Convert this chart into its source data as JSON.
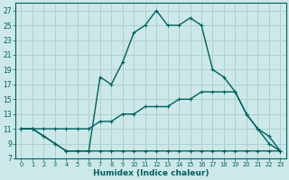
{
  "xlabel": "Humidex (Indice chaleur)",
  "background_color": "#cce8e8",
  "grid_color": "#b0d0d0",
  "line_color": "#006060",
  "xlim": [
    -0.5,
    23.5
  ],
  "ylim": [
    7,
    28
  ],
  "xticks": [
    0,
    1,
    2,
    3,
    4,
    5,
    6,
    7,
    8,
    9,
    10,
    11,
    12,
    13,
    14,
    15,
    16,
    17,
    18,
    19,
    20,
    21,
    22,
    23
  ],
  "yticks": [
    7,
    9,
    11,
    13,
    15,
    17,
    19,
    21,
    23,
    25,
    27
  ],
  "curve1_x": [
    0,
    1,
    2,
    3,
    4,
    5,
    6,
    7,
    8,
    9,
    10,
    11,
    12,
    13,
    14,
    15,
    16,
    17,
    18,
    19,
    20,
    21,
    22,
    23
  ],
  "curve1_y": [
    11,
    11,
    10,
    9,
    8,
    8,
    8,
    8,
    8,
    8,
    8,
    8,
    8,
    8,
    8,
    8,
    8,
    8,
    8,
    8,
    8,
    8,
    8,
    8
  ],
  "curve2_x": [
    0,
    1,
    2,
    3,
    4,
    5,
    6,
    7,
    8,
    9,
    10,
    11,
    12,
    13,
    14,
    15,
    16,
    17,
    18,
    19,
    20,
    21,
    22,
    23
  ],
  "curve2_y": [
    11,
    11,
    11,
    11,
    11,
    11,
    11,
    12,
    12,
    13,
    13,
    14,
    14,
    14,
    15,
    15,
    16,
    16,
    16,
    16,
    13,
    11,
    10,
    8
  ],
  "curve3_x": [
    0,
    1,
    2,
    3,
    4,
    5,
    6,
    7,
    8,
    9,
    10,
    11,
    12,
    13,
    14,
    15,
    16,
    17,
    18,
    19,
    20,
    21,
    22,
    23
  ],
  "curve3_y": [
    11,
    11,
    10,
    9,
    8,
    8,
    8,
    18,
    17,
    20,
    24,
    25,
    27,
    25,
    25,
    26,
    25,
    19,
    18,
    16,
    13,
    11,
    9,
    8
  ],
  "marker": "+",
  "markersize": 3.5,
  "linewidth": 1.0
}
